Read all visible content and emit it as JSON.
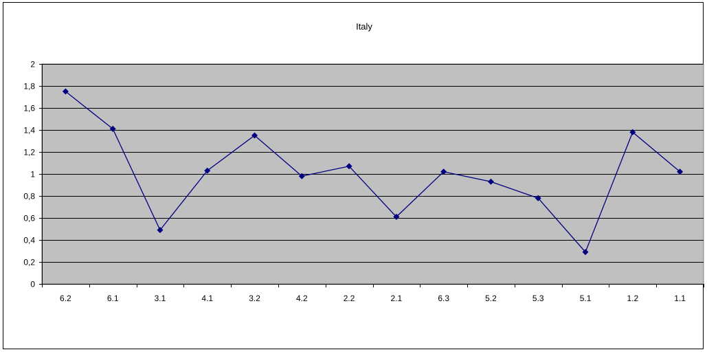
{
  "chart_data": {
    "type": "line",
    "title": "Italy",
    "xlabel": "",
    "ylabel": "",
    "categories": [
      "6.2",
      "6.1",
      "3.1",
      "4.1",
      "3.2",
      "4.2",
      "2.2",
      "2.1",
      "6.3",
      "5.2",
      "5.3",
      "5.1",
      "1.2",
      "1.1"
    ],
    "series": [
      {
        "values": [
          1.75,
          1.41,
          0.49,
          1.03,
          1.35,
          0.98,
          1.07,
          0.61,
          1.02,
          0.93,
          0.78,
          0.29,
          1.38,
          1.02
        ]
      }
    ],
    "ylim": [
      0,
      2
    ],
    "yticks": [
      0,
      0.2,
      0.4,
      0.6,
      0.8,
      1,
      1.2,
      1.4,
      1.6,
      1.8,
      2
    ],
    "ytick_labels": [
      "0",
      "0,2",
      "0,4",
      "0,6",
      "0,8",
      "1",
      "1,2",
      "1,4",
      "1,6",
      "1,8",
      "2"
    ],
    "grid": true,
    "legend": "none",
    "colors": {
      "plot_background": "#c0c0c0",
      "line": "#000080",
      "gridline": "#000000"
    }
  }
}
